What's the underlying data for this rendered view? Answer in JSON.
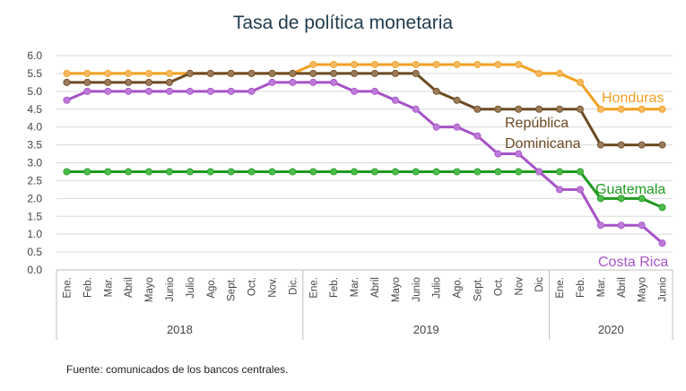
{
  "chart_data": {
    "type": "line",
    "title": "Tasa de política monetaria",
    "source": "Fuente: comunicados de los bancos centrales.",
    "xlabel": "",
    "ylabel": "",
    "ylim": [
      0,
      6
    ],
    "yticks": [
      "0.0",
      "0.5",
      "1.0",
      "1.5",
      "2.0",
      "2.5",
      "3.0",
      "3.5",
      "4.0",
      "4.5",
      "5.0",
      "5.5",
      "6.0"
    ],
    "grid": true,
    "categories": [
      "Ene.",
      "Feb.",
      "Mar.",
      "Abril",
      "Mayo",
      "Junio",
      "Julio",
      "Ago.",
      "Sept.",
      "Oct.",
      "Nov.",
      "Dic.",
      "Ene.",
      "Feb.",
      "Mar.",
      "Abril",
      "Mayo",
      "Junio",
      "Julio",
      "Ago.",
      "Sept.",
      "Oct.",
      "Nov",
      "Dic",
      "Ene.",
      "Feb.",
      "Mar.",
      "Abril",
      "Mayo",
      "Junio"
    ],
    "years": [
      {
        "label": "2018",
        "start": 0,
        "end": 11
      },
      {
        "label": "2019",
        "start": 12,
        "end": 23
      },
      {
        "label": "2020",
        "start": 24,
        "end": 29
      }
    ],
    "series": [
      {
        "name": "Honduras",
        "line_color": "#f0a020",
        "marker_color": "#f6b860",
        "values": [
          5.5,
          5.5,
          5.5,
          5.5,
          5.5,
          5.5,
          5.5,
          5.5,
          5.5,
          5.5,
          5.5,
          5.5,
          5.75,
          5.75,
          5.75,
          5.75,
          5.75,
          5.75,
          5.75,
          5.75,
          5.75,
          5.75,
          5.75,
          5.5,
          5.5,
          5.25,
          4.5,
          4.5,
          4.5,
          4.5
        ]
      },
      {
        "name": "República Dominicana",
        "name_lines": [
          "República",
          "Dominicana"
        ],
        "line_color": "#6b4a22",
        "marker_color": "#9b7a5a",
        "values": [
          5.25,
          5.25,
          5.25,
          5.25,
          5.25,
          5.25,
          5.5,
          5.5,
          5.5,
          5.5,
          5.5,
          5.5,
          5.5,
          5.5,
          5.5,
          5.5,
          5.5,
          5.5,
          5.0,
          4.75,
          4.5,
          4.5,
          4.5,
          4.5,
          4.5,
          4.5,
          3.5,
          3.5,
          3.5,
          3.5
        ]
      },
      {
        "name": "Guatemala",
        "line_color": "#1f9a1f",
        "marker_color": "#4cbb4c",
        "values": [
          2.75,
          2.75,
          2.75,
          2.75,
          2.75,
          2.75,
          2.75,
          2.75,
          2.75,
          2.75,
          2.75,
          2.75,
          2.75,
          2.75,
          2.75,
          2.75,
          2.75,
          2.75,
          2.75,
          2.75,
          2.75,
          2.75,
          2.75,
          2.75,
          2.75,
          2.75,
          2.0,
          2.0,
          2.0,
          1.75
        ]
      },
      {
        "name": "Costa Rica",
        "line_color": "#a652c8",
        "marker_color": "#be7ad8",
        "values": [
          4.75,
          5.0,
          5.0,
          5.0,
          5.0,
          5.0,
          5.0,
          5.0,
          5.0,
          5.0,
          5.25,
          5.25,
          5.25,
          5.25,
          5.0,
          5.0,
          4.75,
          4.5,
          4.0,
          4.0,
          3.75,
          3.25,
          3.25,
          2.75,
          2.25,
          2.25,
          1.25,
          1.25,
          1.25,
          0.75
        ]
      }
    ]
  }
}
